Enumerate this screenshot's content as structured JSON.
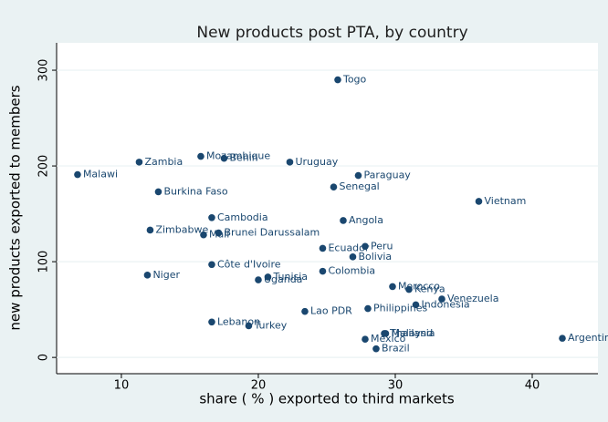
{
  "chart_data": {
    "type": "scatter",
    "title": "New products post PTA, by country",
    "x_label": "share ( % ) exported to third markets",
    "y_label": "new products exported to members",
    "color": "#1a476f",
    "grid": true,
    "xlim": [
      5.27,
      44.8
    ],
    "ylim": [
      -17,
      328.6
    ],
    "xticks": [
      10,
      20,
      30,
      40
    ],
    "yticks": [
      0,
      100,
      200,
      300
    ],
    "labels": [
      "Togo",
      "Zambia",
      "Mozambique",
      "Benin",
      "Uruguay",
      "Malawi",
      "Paraguay",
      "Senegal",
      "Vietnam",
      "Burkina Faso",
      "Cambodia",
      "Angola",
      "Zimbabwe",
      "Mali",
      "Brunei Darussalam",
      "Ecuador",
      "Peru",
      "Bolivia",
      "Côte d'Ivoire",
      "Niger",
      "Colombia",
      "Tunisia",
      "Uganda",
      "Morocco",
      "Kenya",
      "Venezuela",
      "Indonesia",
      "Philippines",
      "Lao PDR",
      "Lebanon",
      "Turkey",
      "Thailand",
      "Malaysia",
      "Mexico",
      "Brazil",
      "Argentina"
    ],
    "x": [
      25.8,
      11.3,
      15.8,
      17.5,
      22.3,
      6.8,
      27.3,
      25.5,
      36.1,
      12.7,
      16.6,
      26.2,
      12.1,
      16.0,
      17.1,
      24.7,
      27.8,
      26.9,
      16.6,
      11.9,
      24.7,
      20.7,
      20.0,
      29.8,
      31.0,
      33.4,
      31.5,
      28.0,
      23.4,
      16.6,
      19.3,
      29.2,
      29.3,
      27.8,
      28.6,
      42.2
    ],
    "values": [
      290,
      204,
      210,
      208,
      204,
      191,
      190,
      178,
      163,
      173,
      146,
      143,
      133,
      128,
      130,
      114,
      116,
      105,
      97,
      86,
      90,
      84,
      81,
      74,
      71,
      61,
      55,
      51,
      48,
      37,
      33,
      25,
      25,
      19,
      9,
      20
    ]
  }
}
